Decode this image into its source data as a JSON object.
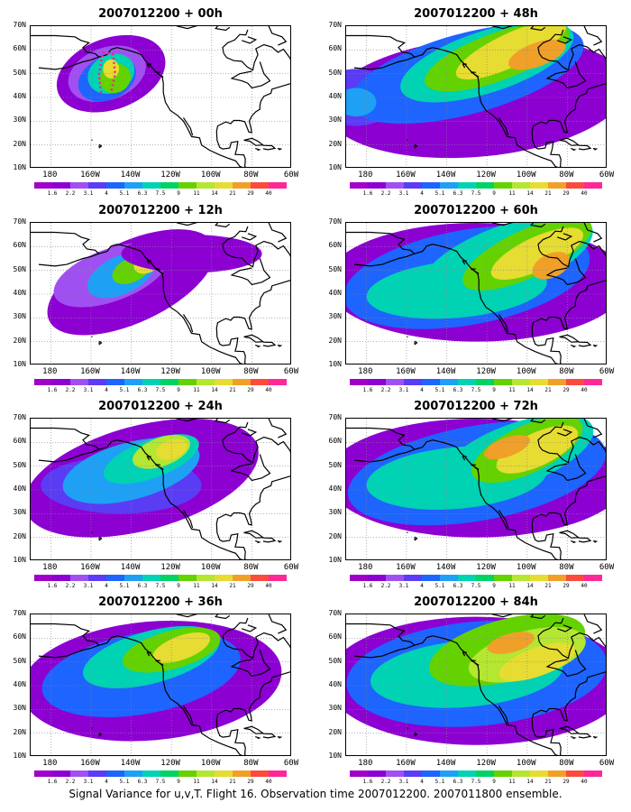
{
  "panels": [
    {
      "title": "2007012200 + 00h"
    },
    {
      "title": "2007012200 + 48h"
    },
    {
      "title": "2007012200 + 12h"
    },
    {
      "title": "2007012200 + 60h"
    },
    {
      "title": "2007012200 + 24h"
    },
    {
      "title": "2007012200 + 72h"
    },
    {
      "title": "2007012200 + 36h"
    },
    {
      "title": "2007012200 + 84h"
    }
  ],
  "lat_labels": [
    "70N",
    "60N",
    "50N",
    "40N",
    "30N",
    "20N",
    "10N"
  ],
  "lon_labels": [
    "180",
    "160W",
    "140W",
    "120W",
    "100W",
    "80W",
    "60W"
  ],
  "colorbar": {
    "labels": [
      "1.6",
      "2.2",
      "3.1",
      "4",
      "5.1",
      "6.3",
      "7.5",
      "9",
      "11",
      "14",
      "21",
      "29",
      "40"
    ],
    "colors": [
      "#8c00d2",
      "#a050f0",
      "#5a3cf5",
      "#1e64ff",
      "#1ea0f5",
      "#00d2b4",
      "#00d264",
      "#64d200",
      "#b4e632",
      "#e6dc32",
      "#f0a028",
      "#fa4b3c",
      "#ff2896"
    ]
  },
  "caption": "Signal Variance for u,v,T. Flight 16. Observation time 2007012200. 2007011800 ensemble."
}
